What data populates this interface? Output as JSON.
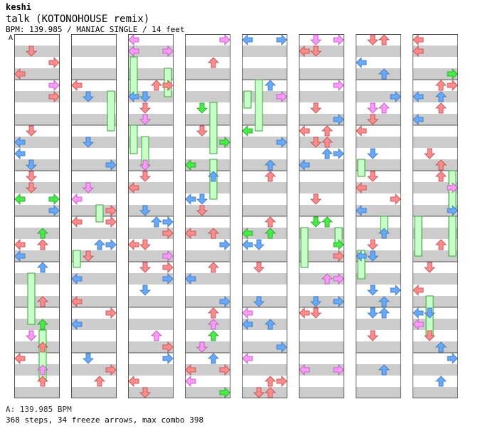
{
  "header": {
    "artist": "keshi",
    "title": "talk (KOTONOHOUSE remix)",
    "meta": "BPM: 139.985 / MANIAC SINGLE / 14 feet",
    "marker": "A"
  },
  "footer": {
    "bpm_line": "A: 139.985 BPM",
    "stats": "368 steps, 34 freeze arrows, max combo 398"
  },
  "chart_data": {
    "type": "step-chart",
    "columns": 8,
    "lanes": [
      "left",
      "down",
      "up",
      "right"
    ],
    "colors": {
      "quarter": "#ff8c8c",
      "eighth": "#66aaff",
      "sixteenth": "#ff99ff",
      "other": "#44ee44",
      "freeze": "#c8ffc8",
      "freeze_border": "#33aa33",
      "stripe": "#cccccc"
    }
  }
}
